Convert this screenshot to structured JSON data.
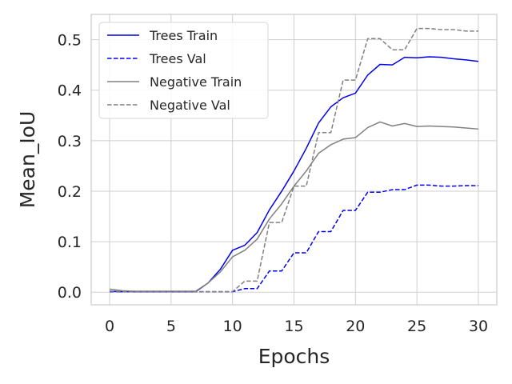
{
  "chart_data": {
    "type": "line",
    "title": "",
    "xlabel": "Epochs",
    "ylabel": "Mean_IoU",
    "xlim": [
      -1.5,
      31.5
    ],
    "ylim": [
      -0.025,
      0.55
    ],
    "xticks": [
      0,
      5,
      10,
      15,
      20,
      25,
      30
    ],
    "xtick_labels": [
      "0",
      "5",
      "10",
      "15",
      "20",
      "25",
      "30"
    ],
    "yticks": [
      0.0,
      0.1,
      0.2,
      0.3,
      0.4,
      0.5
    ],
    "ytick_labels": [
      "0.0",
      "0.1",
      "0.2",
      "0.3",
      "0.4",
      "0.5"
    ],
    "grid": true,
    "legend_position": "top-left",
    "series": [
      {
        "name": "Trees Train",
        "color": "#0000ee",
        "dash": "solid",
        "x": [
          0,
          1,
          2,
          3,
          4,
          5,
          6,
          7,
          8,
          9,
          10,
          11,
          12,
          13,
          14,
          15,
          16,
          17,
          18,
          19,
          20,
          21,
          22,
          23,
          24,
          25,
          26,
          27,
          28,
          29,
          30
        ],
        "y": [
          0.002,
          0.001,
          0.001,
          0.001,
          0.001,
          0.001,
          0.001,
          0.001,
          0.018,
          0.045,
          0.083,
          0.093,
          0.118,
          0.163,
          0.2,
          0.24,
          0.285,
          0.335,
          0.367,
          0.385,
          0.394,
          0.43,
          0.451,
          0.45,
          0.465,
          0.464,
          0.466,
          0.465,
          0.462,
          0.46,
          0.457
        ]
      },
      {
        "name": "Trees Val",
        "color": "#0000ee",
        "dash": "dashed",
        "x": [
          0,
          1,
          2,
          3,
          4,
          5,
          6,
          7,
          8,
          9,
          10,
          11,
          12,
          13,
          14,
          15,
          16,
          17,
          18,
          19,
          20,
          21,
          22,
          23,
          24,
          25,
          26,
          27,
          28,
          29,
          30
        ],
        "y": [
          0.001,
          0.001,
          0.001,
          0.001,
          0.001,
          0.001,
          0.001,
          0.001,
          0.001,
          0.001,
          0.001,
          0.007,
          0.007,
          0.042,
          0.042,
          0.078,
          0.078,
          0.12,
          0.12,
          0.162,
          0.162,
          0.198,
          0.198,
          0.203,
          0.203,
          0.212,
          0.212,
          0.21,
          0.21,
          0.211,
          0.211
        ]
      },
      {
        "name": "Negative Train",
        "color": "#808080",
        "dash": "solid",
        "x": [
          0,
          1,
          2,
          3,
          4,
          5,
          6,
          7,
          8,
          9,
          10,
          11,
          12,
          13,
          14,
          15,
          16,
          17,
          18,
          19,
          20,
          21,
          22,
          23,
          24,
          25,
          26,
          27,
          28,
          29,
          30
        ],
        "y": [
          0.006,
          0.003,
          0.002,
          0.002,
          0.002,
          0.002,
          0.002,
          0.002,
          0.018,
          0.04,
          0.07,
          0.083,
          0.105,
          0.145,
          0.175,
          0.21,
          0.24,
          0.275,
          0.292,
          0.303,
          0.306,
          0.326,
          0.337,
          0.329,
          0.334,
          0.328,
          0.329,
          0.328,
          0.327,
          0.325,
          0.323
        ]
      },
      {
        "name": "Negative Val",
        "color": "#808080",
        "dash": "dashed",
        "x": [
          0,
          1,
          2,
          3,
          4,
          5,
          6,
          7,
          8,
          9,
          10,
          11,
          12,
          13,
          14,
          15,
          16,
          17,
          18,
          19,
          20,
          21,
          22,
          23,
          24,
          25,
          26,
          27,
          28,
          29,
          30
        ],
        "y": [
          0.002,
          0.001,
          0.001,
          0.001,
          0.001,
          0.001,
          0.001,
          0.001,
          0.001,
          0.001,
          0.001,
          0.022,
          0.022,
          0.138,
          0.138,
          0.21,
          0.21,
          0.316,
          0.316,
          0.42,
          0.42,
          0.502,
          0.502,
          0.48,
          0.48,
          0.522,
          0.522,
          0.52,
          0.52,
          0.517,
          0.517
        ]
      }
    ]
  }
}
